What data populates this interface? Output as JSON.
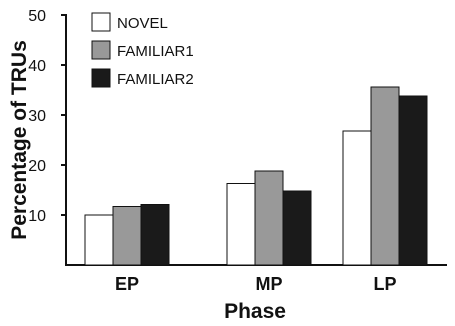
{
  "chart_data": {
    "type": "bar",
    "xlabel": "Phase",
    "ylabel": "Percentage of TRUs",
    "categories": [
      "EP",
      "MP",
      "LP"
    ],
    "ylim": [
      0,
      50
    ],
    "yticks": [
      10,
      20,
      30,
      40,
      50
    ],
    "grid": false,
    "legend_position": "top-left",
    "series": [
      {
        "name": "NOVEL",
        "values": [
          10,
          16.3,
          26.8
        ],
        "color": "#ffffff"
      },
      {
        "name": "FAMILIAR1",
        "values": [
          11.7,
          18.8,
          35.6
        ],
        "color": "#999999"
      },
      {
        "name": "FAMILIAR2",
        "values": [
          12.1,
          14.8,
          33.8
        ],
        "color": "#1a1a1a"
      }
    ]
  }
}
